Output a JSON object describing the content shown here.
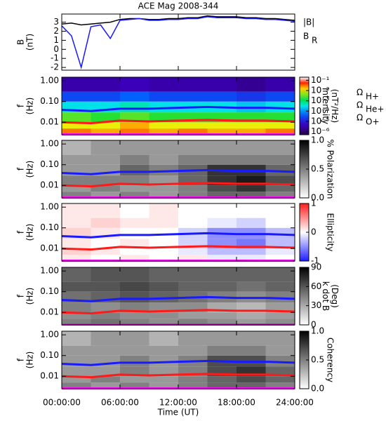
{
  "chart_data": [
    {
      "type": "line",
      "title": "ACE Mag 2008-344",
      "ylabel": [
        "B",
        "(nT)"
      ],
      "x": [
        0,
        1,
        2,
        3,
        4,
        5,
        6,
        7,
        8,
        9,
        10,
        11,
        12,
        13,
        14,
        15,
        16,
        17,
        18,
        19,
        20,
        21,
        22,
        23,
        24
      ],
      "xlim": [
        0,
        24
      ],
      "xticks": [
        0,
        6,
        12,
        18,
        24
      ],
      "ylim": [
        -2.3,
        3.9
      ],
      "yticks": [
        -2,
        -1,
        0,
        1,
        2,
        3
      ],
      "series": [
        {
          "name": "|B|",
          "color": "#000000",
          "values": [
            2.8,
            2.9,
            2.7,
            2.8,
            2.9,
            3.0,
            3.3,
            3.4,
            3.4,
            3.3,
            3.3,
            3.4,
            3.4,
            3.5,
            3.5,
            3.7,
            3.6,
            3.6,
            3.6,
            3.5,
            3.5,
            3.4,
            3.4,
            3.3,
            3.2
          ]
        },
        {
          "name": "B",
          "subscript": "R",
          "color": "#1a1aff",
          "values": [
            2.6,
            1.5,
            -2.0,
            2.5,
            2.7,
            1.2,
            3.2,
            3.3,
            3.4,
            3.2,
            3.2,
            3.3,
            3.3,
            3.4,
            3.4,
            3.6,
            3.5,
            3.5,
            3.5,
            3.4,
            3.4,
            3.3,
            3.3,
            3.2,
            3.1
          ]
        }
      ]
    },
    {
      "type": "heatmap",
      "ylabel": [
        "f",
        "(Hz)"
      ],
      "zlabel": [
        "Intensity",
        "(nT²/Hz)"
      ],
      "colormap": "rainbow",
      "zlog": true,
      "xlim": [
        0,
        24
      ],
      "xticks": [
        0,
        6,
        12,
        18,
        24
      ],
      "ylog": true,
      "ylim": [
        0.0025,
        1.5
      ],
      "yticks": [
        {
          "value": 1,
          "label": "1.00"
        },
        {
          "value": 0.1,
          "label": "0.10"
        },
        {
          "value": 0.01,
          "label": "0.01"
        }
      ],
      "zlim": [
        5e-07,
        0.2
      ],
      "zticks": [
        {
          "value": 0.1,
          "label": "10⁻¹"
        },
        {
          "value": 0.01,
          "label": "10⁻²"
        },
        {
          "value": 0.001,
          "label": "10⁻³"
        },
        {
          "value": 0.0001,
          "label": "10⁻⁴"
        },
        {
          "value": 1e-05,
          "label": "10⁻⁵"
        },
        {
          "value": 1e-06,
          "label": "10⁻⁶"
        }
      ],
      "x": [
        0,
        3,
        6,
        9,
        12,
        15,
        18,
        21,
        24
      ],
      "y": [
        0.0025,
        0.005,
        0.01,
        0.03,
        0.1,
        0.3,
        1.5
      ],
      "z": [
        [
          0.03,
          0.02,
          0.03,
          0.02,
          0.03,
          0.02,
          0.02,
          0.03
        ],
        [
          0.01,
          0.01,
          0.02,
          0.01,
          0.01,
          0.01,
          0.01,
          0.01
        ],
        [
          0.003,
          0.002,
          0.003,
          0.002,
          0.002,
          0.002,
          0.002,
          0.002
        ],
        [
          0.0003,
          0.0003,
          0.0005,
          0.0003,
          0.0003,
          0.0003,
          0.0002,
          0.0003
        ],
        [
          3e-05,
          3e-05,
          5e-05,
          3e-05,
          3e-05,
          3e-05,
          2e-05,
          3e-05
        ],
        [
          3e-06,
          3e-06,
          4e-06,
          3e-06,
          3e-06,
          3e-06,
          2e-06,
          3e-06
        ]
      ],
      "series": [
        {
          "name": "Ω",
          "subscript": "H+",
          "color": "#1a1aff",
          "values": [
            0.04,
            0.035,
            0.045,
            0.045,
            0.05,
            0.055,
            0.05,
            0.05,
            0.045
          ]
        },
        {
          "name": "Ω",
          "subscript": "He+",
          "color": "#ff1a1a",
          "values": [
            0.01,
            0.009,
            0.012,
            0.011,
            0.012,
            0.013,
            0.012,
            0.012,
            0.011
          ]
        },
        {
          "name": "Ω",
          "subscript": "O+",
          "color": "#ff00ff",
          "values": [
            0.0026,
            0.0026,
            0.0026,
            0.0026,
            0.0026,
            0.0026,
            0.0026,
            0.0026,
            0.0026
          ]
        }
      ]
    },
    {
      "type": "heatmap",
      "ylabel": [
        "f",
        "(Hz)"
      ],
      "zlabel": [
        "% Polarization"
      ],
      "colormap": "gray",
      "xlim": [
        0,
        24
      ],
      "xticks": [
        0,
        6,
        12,
        18,
        24
      ],
      "ylog": true,
      "ylim": [
        0.0025,
        1.5
      ],
      "yticks": [
        {
          "value": 1,
          "label": "1.00"
        },
        {
          "value": 0.1,
          "label": "0.10"
        },
        {
          "value": 0.01,
          "label": "0.01"
        }
      ],
      "zlim": [
        0,
        1
      ],
      "zticks": [
        {
          "value": 0,
          "label": "0.0"
        },
        {
          "value": 0.5,
          "label": "0.5"
        },
        {
          "value": 1,
          "label": "1.0"
        }
      ],
      "x": [
        0,
        3,
        6,
        9,
        12,
        15,
        18,
        21,
        24
      ],
      "y": [
        0.0025,
        0.005,
        0.01,
        0.03,
        0.1,
        0.3,
        1.5
      ],
      "z": [
        [
          0.5,
          0.4,
          0.5,
          0.4,
          0.5,
          0.6,
          0.6,
          0.5
        ],
        [
          0.4,
          0.5,
          0.4,
          0.4,
          0.5,
          0.7,
          0.8,
          0.6
        ],
        [
          0.5,
          0.5,
          0.5,
          0.4,
          0.6,
          0.8,
          0.9,
          0.7
        ],
        [
          0.4,
          0.4,
          0.6,
          0.5,
          0.6,
          0.8,
          0.8,
          0.6
        ],
        [
          0.4,
          0.4,
          0.5,
          0.4,
          0.5,
          0.5,
          0.5,
          0.5
        ],
        [
          0.3,
          0.4,
          0.4,
          0.4,
          0.4,
          0.4,
          0.4,
          0.4
        ]
      ],
      "series": [
        {
          "color": "#1a1aff",
          "values": [
            0.04,
            0.035,
            0.045,
            0.045,
            0.05,
            0.055,
            0.05,
            0.05,
            0.045
          ]
        },
        {
          "color": "#ff1a1a",
          "values": [
            0.01,
            0.009,
            0.012,
            0.011,
            0.012,
            0.013,
            0.012,
            0.012,
            0.011
          ]
        },
        {
          "color": "#ff00ff",
          "values": [
            0.0026,
            0.0026,
            0.0026,
            0.0026,
            0.0026,
            0.0026,
            0.0026,
            0.0026,
            0.0026
          ]
        }
      ]
    },
    {
      "type": "heatmap",
      "ylabel": [
        "f",
        "(Hz)"
      ],
      "zlabel": [
        "Ellipticity"
      ],
      "colormap": "bwr",
      "xlim": [
        0,
        24
      ],
      "xticks": [
        0,
        6,
        12,
        18,
        24
      ],
      "ylog": true,
      "ylim": [
        0.0025,
        1.5
      ],
      "yticks": [
        {
          "value": 1,
          "label": "1.00"
        },
        {
          "value": 0.1,
          "label": "0.10"
        },
        {
          "value": 0.01,
          "label": "0.01"
        }
      ],
      "zlim": [
        -1,
        1
      ],
      "zticks": [
        -1,
        0,
        1
      ],
      "x": [
        0,
        3,
        6,
        9,
        12,
        15,
        18,
        21,
        24
      ],
      "y": [
        0.0025,
        0.005,
        0.01,
        0.03,
        0.1,
        0.3,
        1.5
      ],
      "z": [
        [
          0.1,
          0.0,
          0.1,
          0.0,
          0.1,
          -0.1,
          -0.1,
          0.0
        ],
        [
          0.2,
          0.1,
          0.0,
          0.0,
          -0.1,
          -0.3,
          -0.3,
          -0.1
        ],
        [
          0.1,
          0.0,
          0.1,
          0.0,
          -0.2,
          -0.5,
          -0.6,
          -0.3
        ],
        [
          0.2,
          0.1,
          0.0,
          0.0,
          -0.2,
          -0.5,
          -0.5,
          -0.3
        ],
        [
          0.1,
          0.2,
          0.1,
          0.1,
          0.0,
          -0.1,
          -0.2,
          0.0
        ],
        [
          0.1,
          0.1,
          0.0,
          0.1,
          0.0,
          0.0,
          0.0,
          0.0
        ]
      ],
      "series": [
        {
          "color": "#1a1aff",
          "values": [
            0.04,
            0.035,
            0.045,
            0.045,
            0.05,
            0.055,
            0.05,
            0.05,
            0.045
          ]
        },
        {
          "color": "#ff1a1a",
          "values": [
            0.01,
            0.009,
            0.012,
            0.011,
            0.012,
            0.013,
            0.012,
            0.012,
            0.011
          ]
        },
        {
          "color": "#ff00ff",
          "values": [
            0.0026,
            0.0026,
            0.0026,
            0.0026,
            0.0026,
            0.0026,
            0.0026,
            0.0026,
            0.0026
          ]
        }
      ]
    },
    {
      "type": "heatmap",
      "ylabel": [
        "f",
        "(Hz)"
      ],
      "zlabel": [
        "k dot B",
        "(Deg)"
      ],
      "colormap": "gray",
      "xlim": [
        0,
        24
      ],
      "xticks": [
        0,
        6,
        12,
        18,
        24
      ],
      "ylog": true,
      "ylim": [
        0.0025,
        1.5
      ],
      "yticks": [
        {
          "value": 1,
          "label": "1.00"
        },
        {
          "value": 0.1,
          "label": "0.10"
        },
        {
          "value": 0.01,
          "label": "0.01"
        }
      ],
      "zlim": [
        0,
        90
      ],
      "zticks": [
        0,
        30,
        60,
        90
      ],
      "x": [
        0,
        3,
        6,
        9,
        12,
        15,
        18,
        21,
        24
      ],
      "y": [
        0.0025,
        0.005,
        0.01,
        0.03,
        0.1,
        0.3,
        1.5
      ],
      "z": [
        [
          45,
          50,
          45,
          40,
          45,
          40,
          35,
          40
        ],
        [
          40,
          45,
          40,
          40,
          35,
          35,
          30,
          35
        ],
        [
          45,
          40,
          45,
          40,
          40,
          30,
          25,
          35
        ],
        [
          50,
          55,
          60,
          55,
          50,
          45,
          40,
          45
        ],
        [
          60,
          60,
          65,
          60,
          55,
          55,
          50,
          55
        ],
        [
          55,
          60,
          60,
          55,
          55,
          55,
          55,
          55
        ]
      ],
      "series": [
        {
          "color": "#1a1aff",
          "values": [
            0.04,
            0.035,
            0.045,
            0.045,
            0.05,
            0.055,
            0.05,
            0.05,
            0.045
          ]
        },
        {
          "color": "#ff1a1a",
          "values": [
            0.01,
            0.009,
            0.012,
            0.011,
            0.012,
            0.013,
            0.012,
            0.012,
            0.011
          ]
        },
        {
          "color": "#ff00ff",
          "values": [
            0.0026,
            0.0026,
            0.0026,
            0.0026,
            0.0026,
            0.0026,
            0.0026,
            0.0026,
            0.0026
          ]
        }
      ]
    },
    {
      "type": "heatmap",
      "ylabel": [
        "f",
        "(Hz)"
      ],
      "zlabel": [
        "Coherency"
      ],
      "colormap": "gray",
      "xlabel": "Time (UT)",
      "xlim": [
        0,
        24
      ],
      "ylog": true,
      "ylim": [
        0.0025,
        1.5
      ],
      "xticks": [
        {
          "value": 0,
          "label": "00:00:00"
        },
        {
          "value": 6,
          "label": "06:00:00"
        },
        {
          "value": 12,
          "label": "12:00:00"
        },
        {
          "value": 18,
          "label": "18:00:00"
        },
        {
          "value": 24,
          "label": "24:00:00"
        }
      ],
      "yticks": [
        {
          "value": 1,
          "label": "1.00"
        },
        {
          "value": 0.1,
          "label": "0.10"
        },
        {
          "value": 0.01,
          "label": "0.01"
        }
      ],
      "zlim": [
        0,
        1
      ],
      "zticks": [
        {
          "value": 0,
          "label": "0.0"
        },
        {
          "value": 0.5,
          "label": "0.5"
        },
        {
          "value": 1,
          "label": "1.0"
        }
      ],
      "x": [
        0,
        3,
        6,
        9,
        12,
        15,
        18,
        21,
        24
      ],
      "y": [
        0.0025,
        0.005,
        0.01,
        0.03,
        0.1,
        0.3,
        1.5
      ],
      "z": [
        [
          0.5,
          0.4,
          0.5,
          0.4,
          0.5,
          0.6,
          0.6,
          0.5
        ],
        [
          0.4,
          0.5,
          0.4,
          0.4,
          0.5,
          0.6,
          0.7,
          0.6
        ],
        [
          0.4,
          0.4,
          0.5,
          0.4,
          0.5,
          0.7,
          0.8,
          0.6
        ],
        [
          0.4,
          0.4,
          0.5,
          0.4,
          0.5,
          0.7,
          0.7,
          0.5
        ],
        [
          0.4,
          0.4,
          0.4,
          0.4,
          0.4,
          0.5,
          0.5,
          0.4
        ],
        [
          0.3,
          0.4,
          0.4,
          0.3,
          0.4,
          0.4,
          0.4,
          0.4
        ]
      ],
      "series": [
        {
          "color": "#1a1aff",
          "values": [
            0.04,
            0.035,
            0.045,
            0.045,
            0.05,
            0.055,
            0.05,
            0.05,
            0.045
          ]
        },
        {
          "color": "#ff1a1a",
          "values": [
            0.01,
            0.009,
            0.012,
            0.011,
            0.012,
            0.013,
            0.012,
            0.012,
            0.011
          ]
        },
        {
          "color": "#ff00ff",
          "values": [
            0.0026,
            0.0026,
            0.0026,
            0.0026,
            0.0026,
            0.0026,
            0.0026,
            0.0026,
            0.0026
          ]
        }
      ]
    }
  ]
}
